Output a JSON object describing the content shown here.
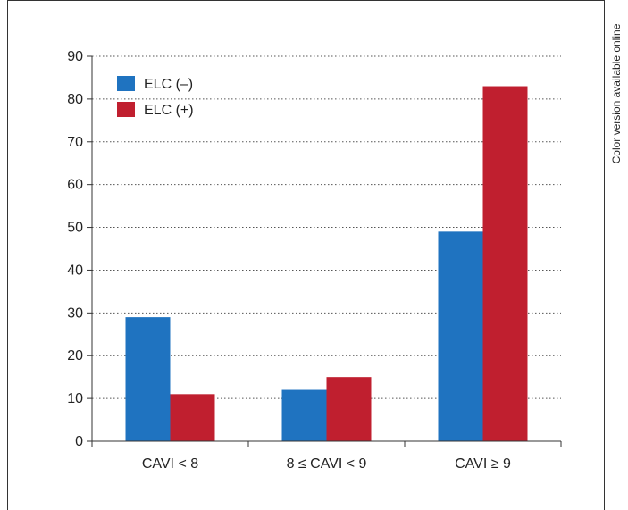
{
  "side_note": "Color version available online",
  "chart_data": {
    "type": "bar",
    "title": "",
    "xlabel": "",
    "ylabel": "",
    "categories": [
      "CAVI < 8",
      "8 ≤ CAVI < 9",
      "CAVI ≥ 9"
    ],
    "series": [
      {
        "name": "ELC (–)",
        "color": "#1f73c0",
        "values": [
          29,
          12,
          49
        ]
      },
      {
        "name": "ELC (+)",
        "color": "#c01f2f",
        "values": [
          11,
          15,
          83
        ]
      }
    ],
    "ylim": [
      0,
      90
    ],
    "yticks": [
      0,
      10,
      20,
      30,
      40,
      50,
      60,
      70,
      80,
      90
    ],
    "grid": true,
    "legend_position": "top-left"
  }
}
